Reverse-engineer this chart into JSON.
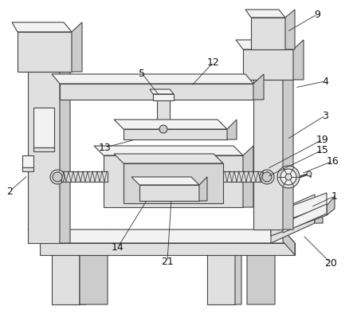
{
  "bg_color": "#ffffff",
  "lc": "#444444",
  "lw": 0.8,
  "face_light": "#f2f2f2",
  "face_mid": "#e0e0e0",
  "face_dark": "#cccccc",
  "face_darker": "#b8b8b8",
  "fontsize": 9
}
